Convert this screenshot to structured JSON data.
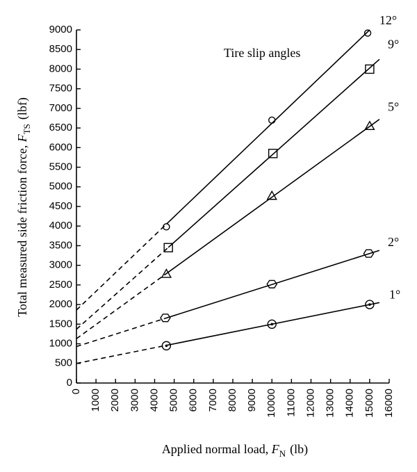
{
  "chart_data": {
    "type": "line",
    "title": "",
    "legend_title": "Tire slip angles",
    "xlabel": {
      "prefix": "Applied normal load,",
      "var": "F",
      "sub": "N",
      "unit": "(lb)"
    },
    "ylabel": {
      "prefix": "Total measured side friction force,",
      "var": "F",
      "sub": "TS",
      "unit": "(lbf)"
    },
    "xlim": [
      0,
      16000
    ],
    "ylim": [
      0,
      9000
    ],
    "xticks": [
      0,
      1000,
      2000,
      3000,
      4000,
      5000,
      6000,
      7000,
      8000,
      9000,
      10000,
      11000,
      12000,
      13000,
      14000,
      15000,
      16000
    ],
    "yticks": [
      0,
      500,
      1000,
      1500,
      2000,
      2500,
      3000,
      3500,
      4000,
      4500,
      5000,
      5500,
      6000,
      6500,
      7000,
      7500,
      8000,
      8500,
      9000
    ],
    "grid": false,
    "legend_placement": "series labels at right ends of lines",
    "series": [
      {
        "name": "12°",
        "marker": "circle",
        "x": [
          4600,
          10000,
          14900
        ],
        "y": [
          3980,
          6700,
          8920
        ],
        "fit": {
          "intercept": 1860,
          "x_end": 15000,
          "y_end": 9000
        }
      },
      {
        "name": "9°",
        "marker": "square",
        "x": [
          4700,
          10050,
          15000
        ],
        "y": [
          3450,
          5850,
          8000
        ],
        "fit": {
          "intercept": 1370,
          "x_end": 15500,
          "y_end": 8250
        }
      },
      {
        "name": "5°",
        "marker": "triangle",
        "x": [
          4600,
          10000,
          15000
        ],
        "y": [
          2780,
          4770,
          6550
        ],
        "fit": {
          "intercept": 1130,
          "x_end": 15500,
          "y_end": 6720
        }
      },
      {
        "name": "2°",
        "marker": "hexagon",
        "x": [
          4550,
          10000,
          14950
        ],
        "y": [
          1660,
          2520,
          3300
        ],
        "fit": {
          "intercept": 930,
          "x_end": 15500,
          "y_end": 3380
        }
      },
      {
        "name": "1°",
        "marker": "circle-dot",
        "x": [
          4600,
          10000,
          15000
        ],
        "y": [
          950,
          1500,
          2000
        ],
        "fit": {
          "intercept": 500,
          "x_end": 15500,
          "y_end": 2050
        }
      }
    ]
  }
}
